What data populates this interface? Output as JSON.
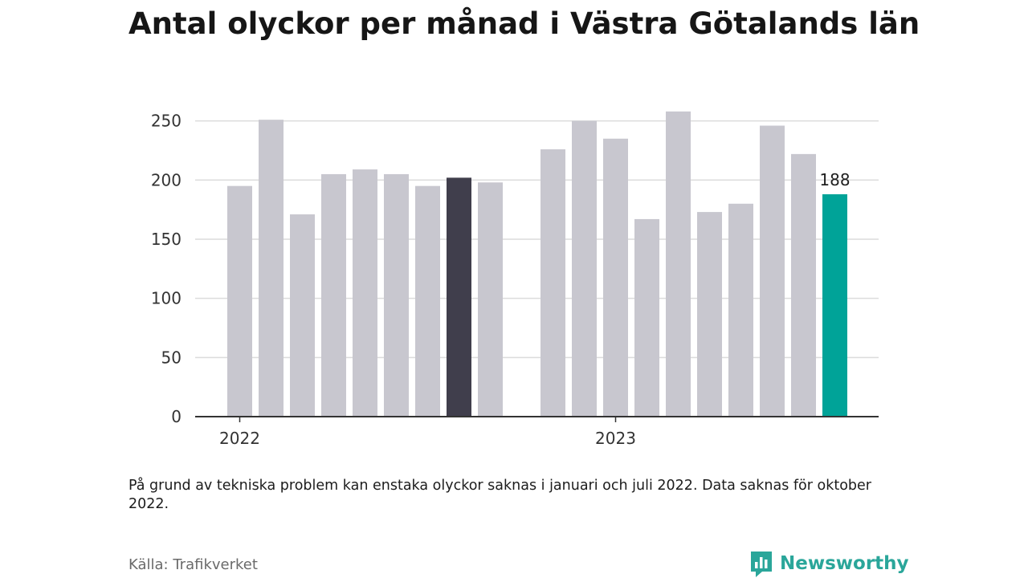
{
  "title": "Antal olyckor per månad i Västra Götalands län",
  "footnote": "På grund av tekniska problem kan enstaka olyckor saknas i januari och juli 2022. Data saknas för oktober 2022.",
  "source": "Källa: Trafikverket",
  "brand": {
    "name": "Newsworthy",
    "icon": "newsworthy-logo-icon",
    "color": "#2aa69a"
  },
  "colors": {
    "default_bar": "#c8c7cf",
    "highlight_bar": "#403e4c",
    "latest_bar": "#00a398",
    "gridline": "#dcdcdc",
    "baseline": "#333333"
  },
  "chart_data": {
    "type": "bar",
    "x_tick_labels": [
      "2022",
      "2023"
    ],
    "ylim": [
      0,
      260
    ],
    "y_ticks": [
      0,
      50,
      100,
      150,
      200,
      250
    ],
    "grid": true,
    "series": [
      {
        "values": [
          {
            "period": "2022-01",
            "value": 195,
            "style": "default"
          },
          {
            "period": "2022-02",
            "value": 251,
            "style": "default"
          },
          {
            "period": "2022-03",
            "value": 171,
            "style": "default"
          },
          {
            "period": "2022-04",
            "value": 205,
            "style": "default"
          },
          {
            "period": "2022-05",
            "value": 209,
            "style": "default"
          },
          {
            "period": "2022-06",
            "value": 205,
            "style": "default"
          },
          {
            "period": "2022-07",
            "value": 195,
            "style": "default"
          },
          {
            "period": "2022-08",
            "value": 202,
            "style": "highlight"
          },
          {
            "period": "2022-09",
            "value": 198,
            "style": "default"
          },
          {
            "period": "2022-10",
            "value": null,
            "style": "missing"
          },
          {
            "period": "2022-11",
            "value": 226,
            "style": "default"
          },
          {
            "period": "2022-12",
            "value": 250,
            "style": "default"
          },
          {
            "period": "2023-01",
            "value": 235,
            "style": "default"
          },
          {
            "period": "2023-02",
            "value": 167,
            "style": "default"
          },
          {
            "period": "2023-03",
            "value": 258,
            "style": "default"
          },
          {
            "period": "2023-04",
            "value": 173,
            "style": "default"
          },
          {
            "period": "2023-05",
            "value": 180,
            "style": "default"
          },
          {
            "period": "2023-06",
            "value": 246,
            "style": "default"
          },
          {
            "period": "2023-07",
            "value": 222,
            "style": "default"
          },
          {
            "period": "2023-08",
            "value": 188,
            "style": "latest"
          }
        ]
      }
    ],
    "annotations": [
      {
        "period": "2023-08",
        "text": "188"
      }
    ]
  }
}
